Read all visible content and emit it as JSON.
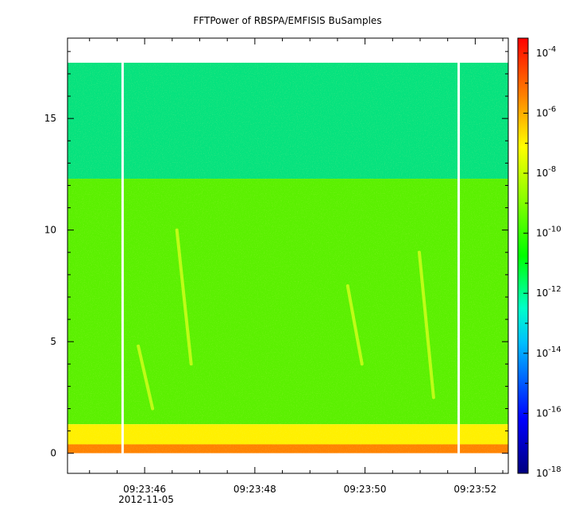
{
  "chart_data": {
    "type": "heatmap",
    "title": "FFTPower of RBSPA/EMFISIS  BuSamples",
    "xlabel": "",
    "ylabel": "",
    "x_range": [
      "09:23:44.6",
      "09:23:52.6"
    ],
    "x_ticks": [
      "09:23:46",
      "09:23:48",
      "09:23:50",
      "09:23:52"
    ],
    "x_date_label": "2012-11-05",
    "ylim": [
      -0.9,
      18.6
    ],
    "y_ticks": [
      "0",
      "5",
      "10",
      "15"
    ],
    "y_tick_values": [
      0,
      5,
      10,
      15
    ],
    "data_extent_y": [
      0,
      17.5
    ],
    "colorbar": {
      "scale": "log",
      "range": [
        "1e-18",
        "1e-3.5"
      ],
      "colormap": "rainbow",
      "ticks": [
        {
          "base": "10",
          "exp": "-4",
          "value": -4
        },
        {
          "base": "10",
          "exp": "-6",
          "value": -6
        },
        {
          "base": "10",
          "exp": "-8",
          "value": -8
        },
        {
          "base": "10",
          "exp": "-10",
          "value": -10
        },
        {
          "base": "10",
          "exp": "-12",
          "value": -12
        },
        {
          "base": "10",
          "exp": "-14",
          "value": -14
        },
        {
          "base": "10",
          "exp": "-16",
          "value": -16
        },
        {
          "base": "10",
          "exp": "-18",
          "value": -18
        }
      ]
    },
    "bands": [
      {
        "y_from": 12.3,
        "y_to": 17.5,
        "log_power": -11.2
      },
      {
        "y_from": 1.3,
        "y_to": 12.3,
        "log_power": -10.0
      },
      {
        "y_from": 0.4,
        "y_to": 1.3,
        "log_power": -8.0
      },
      {
        "y_from": 0,
        "y_to": 0.4,
        "log_power": -6.8
      }
    ],
    "data_gaps_time": [
      "09:23:45.6",
      "09:23:51.7"
    ],
    "bursts": [
      {
        "t": "09:23:46.7",
        "f_from": 4.0,
        "f_to": 10.0
      },
      {
        "t": "09:23:49.8",
        "f_from": 4.0,
        "f_to": 7.5
      },
      {
        "t": "09:23:51.1",
        "f_from": 2.5,
        "f_to": 9.0
      },
      {
        "t": "09:23:46.0",
        "f_from": 2.0,
        "f_to": 4.8
      }
    ],
    "colors": {
      "gap": "#ffffff",
      "axis": "#000000"
    }
  }
}
